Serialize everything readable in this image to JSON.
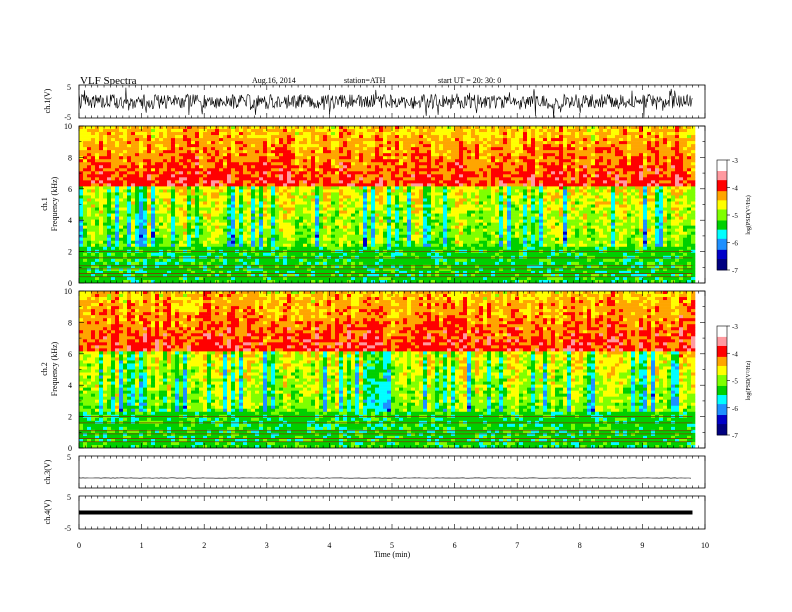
{
  "header": {
    "title": "VLF  Spectra",
    "date": "Aug.16, 2014",
    "station": "station=ATH",
    "start": "start  UT  =   20: 30: 0"
  },
  "colorbar": {
    "label": "log(PSD(V²/Hz)",
    "ticks": [
      "-3",
      "-4",
      "-5",
      "-6",
      "-7"
    ],
    "colors": [
      "#ffffff",
      "#ff9aa0",
      "#ff0000",
      "#ffa500",
      "#ffff00",
      "#7fff00",
      "#00d000",
      "#00ffff",
      "#1e90ff",
      "#0000c8",
      "#000080"
    ]
  },
  "chart_data": [
    {
      "type": "line",
      "name": "ch1-waveform",
      "ylabel": "ch.1(V)",
      "yticks": [
        "5",
        "-5"
      ],
      "ylim": [
        -5,
        5
      ],
      "xlim": [
        0,
        9.8
      ],
      "approx_amplitude": 2.2
    },
    {
      "type": "heatmap",
      "name": "ch1-spectrogram",
      "ylabel_channel": "ch.1",
      "ylabel": "Frequency  (kHz)",
      "yticks": [
        "0",
        "2",
        "4",
        "6",
        "8",
        "10"
      ],
      "ylim": [
        0,
        10
      ],
      "xlim": [
        0,
        9.8
      ],
      "clim": [
        -7,
        -3
      ]
    },
    {
      "type": "heatmap",
      "name": "ch2-spectrogram",
      "ylabel_channel": "ch.2",
      "ylabel": "Frequency  (kHz)",
      "yticks": [
        "0",
        "2",
        "4",
        "6",
        "8",
        "10"
      ],
      "ylim": [
        0,
        10
      ],
      "xlim": [
        0,
        9.8
      ],
      "clim": [
        -7,
        -3
      ]
    },
    {
      "type": "line",
      "name": "ch3-waveform",
      "ylabel": "ch.3(V)",
      "yticks": [
        "5"
      ],
      "ylim": [
        -5,
        5
      ],
      "xlim": [
        0,
        9.8
      ],
      "approx_amplitude": 0.2
    },
    {
      "type": "line",
      "name": "ch4-waveform",
      "ylabel": "ch.4(V)",
      "yticks": [
        "5",
        "-5"
      ],
      "ylim": [
        -5,
        5
      ],
      "xlim": [
        0,
        9.8
      ],
      "approx_level": 0
    }
  ],
  "xaxis": {
    "label": "Time  (min)",
    "ticks": [
      "0",
      "1",
      "2",
      "3",
      "4",
      "5",
      "6",
      "7",
      "8",
      "9",
      "10"
    ],
    "xlim": [
      0,
      10
    ]
  }
}
